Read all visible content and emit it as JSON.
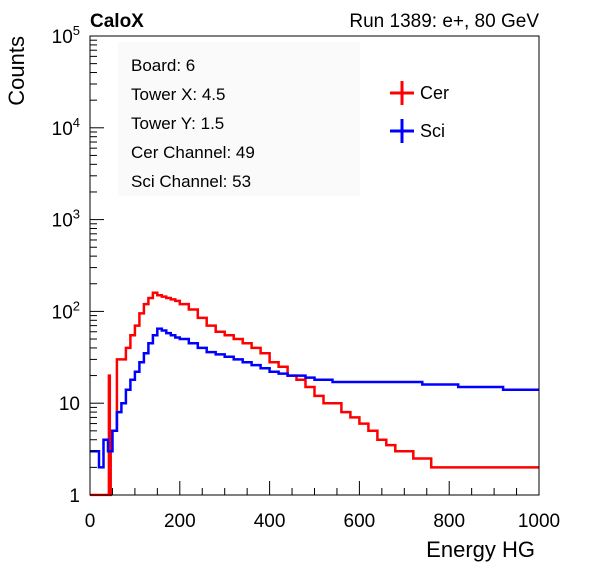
{
  "header": {
    "brand": "CaloX",
    "run_info": "Run 1389: e+, 80 GeV"
  },
  "info_box": {
    "lines": [
      "Board: 6",
      "Tower X: 4.5",
      "Tower Y: 1.5",
      "Cer Channel: 49",
      "Sci Channel: 53"
    ]
  },
  "chart_data": {
    "type": "line",
    "title": "",
    "xlabel": "Energy HG",
    "ylabel": "Counts",
    "xlim": [
      0,
      1000
    ],
    "ylim": [
      1,
      100000
    ],
    "y_scale": "log",
    "x_ticks": [
      0,
      200,
      400,
      600,
      800,
      1000
    ],
    "y_ticks": [
      {
        "value": 1,
        "label": "1"
      },
      {
        "value": 10,
        "label": "10"
      },
      {
        "value": 100,
        "base": "10",
        "exp": "2"
      },
      {
        "value": 1000,
        "base": "10",
        "exp": "3"
      },
      {
        "value": 10000,
        "base": "10",
        "exp": "4"
      },
      {
        "value": 100000,
        "base": "10",
        "exp": "5"
      }
    ],
    "legend_position": "top-right",
    "series": [
      {
        "name": "Cer",
        "color": "#ff0000",
        "x": [
          0,
          40,
          42,
          44,
          46,
          60,
          80,
          90,
          100,
          110,
          120,
          130,
          140,
          150,
          160,
          170,
          180,
          190,
          200,
          220,
          240,
          260,
          280,
          300,
          320,
          340,
          360,
          380,
          400,
          420,
          440,
          460,
          480,
          500,
          520,
          540,
          560,
          580,
          600,
          620,
          640,
          660,
          680,
          700,
          720,
          740,
          760,
          780,
          800,
          820,
          840,
          860,
          880,
          900,
          920,
          940,
          960,
          980,
          1000
        ],
        "y": [
          0,
          0,
          20,
          1,
          5,
          30,
          40,
          55,
          70,
          95,
          120,
          140,
          160,
          150,
          145,
          140,
          135,
          130,
          120,
          105,
          85,
          70,
          60,
          55,
          50,
          45,
          40,
          35,
          28,
          25,
          20,
          18,
          15,
          12,
          10,
          10,
          8,
          7,
          6,
          5,
          4,
          3.5,
          3,
          3,
          2.5,
          2.5,
          2,
          2,
          2,
          2,
          2,
          2,
          2,
          2,
          2,
          2,
          2,
          2,
          2
        ]
      },
      {
        "name": "Sci",
        "color": "#0000ff",
        "x": [
          0,
          10,
          20,
          30,
          40,
          50,
          60,
          70,
          80,
          90,
          100,
          110,
          120,
          130,
          140,
          150,
          160,
          170,
          180,
          190,
          200,
          220,
          240,
          260,
          280,
          300,
          320,
          340,
          360,
          380,
          400,
          420,
          440,
          460,
          480,
          500,
          520,
          540,
          560,
          580,
          600,
          620,
          640,
          660,
          680,
          700,
          720,
          740,
          760,
          780,
          800,
          820,
          840,
          860,
          880,
          900,
          920,
          940,
          960,
          980,
          1000
        ],
        "y": [
          3,
          3,
          2,
          4,
          3,
          5,
          8,
          10,
          14,
          18,
          22,
          28,
          35,
          45,
          55,
          65,
          62,
          58,
          55,
          52,
          50,
          45,
          40,
          36,
          34,
          32,
          30,
          28,
          26,
          24,
          22,
          21,
          20,
          20,
          19,
          18,
          18,
          17,
          17,
          17,
          17,
          17,
          17,
          17,
          17,
          17,
          17,
          16,
          16,
          16,
          16,
          15,
          15,
          15,
          15,
          15,
          14,
          14,
          14,
          14,
          14
        ]
      }
    ]
  }
}
